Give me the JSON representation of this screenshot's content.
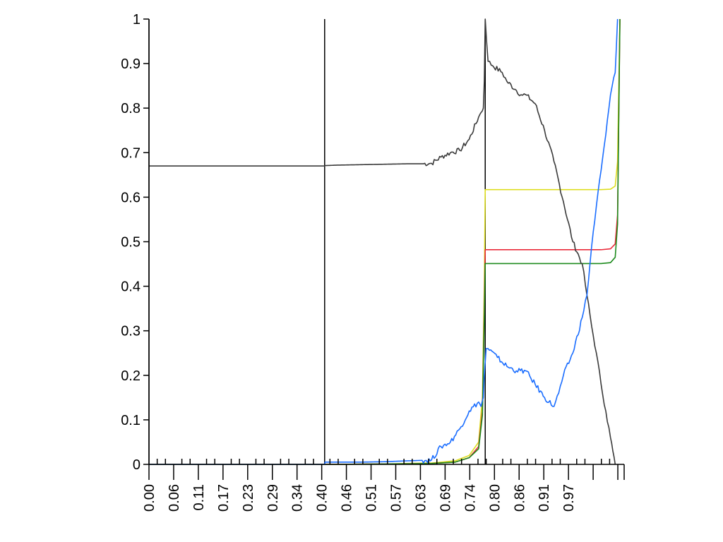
{
  "chart_data": {
    "type": "line",
    "title": "",
    "xlabel": "",
    "ylabel": "",
    "xlim": [
      0,
      1
    ],
    "ylim": [
      0,
      1
    ],
    "grid": false,
    "legend": "none",
    "x_tick_labels": [
      "0.00",
      "0.06",
      "0.11",
      "0.17",
      "0.23",
      "0.29",
      "0.34",
      "0.40",
      "0.46",
      "0.51",
      "0.57",
      "0.63",
      "0.69",
      "0.74",
      "0.80",
      "0.86",
      "0.91",
      "0.97"
    ],
    "y_tick_labels": [
      "0",
      "0.1",
      "0.2",
      "0.3",
      "0.4",
      "0.5",
      "0.6",
      "0.7",
      "0.8",
      "0.9",
      "1"
    ],
    "vertical_markers": [
      {
        "x": 0.0,
        "color": "#000000"
      },
      {
        "x": 0.373,
        "color": "#000000"
      },
      {
        "x": 0.714,
        "color": "#000000"
      }
    ],
    "series": [
      {
        "color": "#3a3a3a",
        "x": [
          0.0,
          0.373,
          0.374,
          0.4,
          0.45,
          0.5,
          0.55,
          0.58,
          0.6,
          0.62,
          0.64,
          0.66,
          0.68,
          0.7,
          0.705,
          0.71,
          0.712,
          0.714,
          0.72,
          0.73,
          0.75,
          0.76,
          0.78,
          0.79,
          0.8,
          0.82,
          0.84,
          0.86,
          0.88,
          0.9,
          0.92,
          0.93,
          0.94,
          0.95,
          0.96,
          0.97,
          0.98,
          0.985,
          0.99
        ],
        "y": [
          0.67,
          0.67,
          0.671,
          0.672,
          0.673,
          0.674,
          0.675,
          0.675,
          0.676,
          0.69,
          0.7,
          0.705,
          0.73,
          0.78,
          0.79,
          0.8,
          0.86,
          1.0,
          0.905,
          0.895,
          0.88,
          0.86,
          0.84,
          0.83,
          0.83,
          0.81,
          0.75,
          0.68,
          0.59,
          0.5,
          0.45,
          0.38,
          0.31,
          0.25,
          0.18,
          0.12,
          0.06,
          0.03,
          0.0
        ]
      },
      {
        "color": "#1a6dff",
        "x": [
          0.0,
          0.373,
          0.374,
          0.4,
          0.45,
          0.5,
          0.55,
          0.58,
          0.6,
          0.62,
          0.64,
          0.66,
          0.68,
          0.7,
          0.705,
          0.71,
          0.712,
          0.716,
          0.72,
          0.74,
          0.76,
          0.78,
          0.8,
          0.82,
          0.84,
          0.86,
          0.87,
          0.88,
          0.9,
          0.92,
          0.93,
          0.94,
          0.95,
          0.96,
          0.97,
          0.98,
          0.99,
          0.995
        ],
        "y": [
          0.0,
          0.0,
          0.005,
          0.005,
          0.005,
          0.006,
          0.008,
          0.009,
          0.01,
          0.04,
          0.05,
          0.08,
          0.12,
          0.14,
          0.13,
          0.15,
          0.2,
          0.26,
          0.26,
          0.24,
          0.22,
          0.21,
          0.21,
          0.18,
          0.15,
          0.13,
          0.16,
          0.2,
          0.25,
          0.33,
          0.38,
          0.49,
          0.58,
          0.66,
          0.74,
          0.83,
          0.88,
          1.0
        ]
      },
      {
        "color": "#dede1f",
        "x": [
          0.0,
          0.4,
          0.5,
          0.6,
          0.65,
          0.68,
          0.7,
          0.708,
          0.712,
          0.714,
          0.8,
          0.9,
          0.96,
          0.98,
          0.99,
          0.995,
          1.0
        ],
        "y": [
          0.0,
          0.0,
          0.001,
          0.003,
          0.008,
          0.02,
          0.05,
          0.15,
          0.4,
          0.617,
          0.617,
          0.617,
          0.617,
          0.618,
          0.625,
          0.68,
          1.0
        ]
      },
      {
        "color": "#ea2a3a",
        "x": [
          0.0,
          0.4,
          0.5,
          0.6,
          0.65,
          0.68,
          0.7,
          0.708,
          0.712,
          0.714,
          0.8,
          0.9,
          0.96,
          0.98,
          0.99,
          0.995,
          1.0
        ],
        "y": [
          0.0,
          0.0,
          0.001,
          0.002,
          0.005,
          0.015,
          0.04,
          0.12,
          0.35,
          0.482,
          0.482,
          0.482,
          0.482,
          0.484,
          0.495,
          0.56,
          1.0
        ]
      },
      {
        "color": "#1c8a1c",
        "x": [
          0.0,
          0.4,
          0.5,
          0.6,
          0.65,
          0.68,
          0.7,
          0.708,
          0.712,
          0.714,
          0.8,
          0.9,
          0.96,
          0.98,
          0.99,
          0.995,
          1.0
        ],
        "y": [
          0.0,
          0.0,
          0.001,
          0.002,
          0.005,
          0.015,
          0.035,
          0.11,
          0.33,
          0.451,
          0.451,
          0.451,
          0.451,
          0.453,
          0.465,
          0.54,
          1.0
        ]
      }
    ]
  }
}
